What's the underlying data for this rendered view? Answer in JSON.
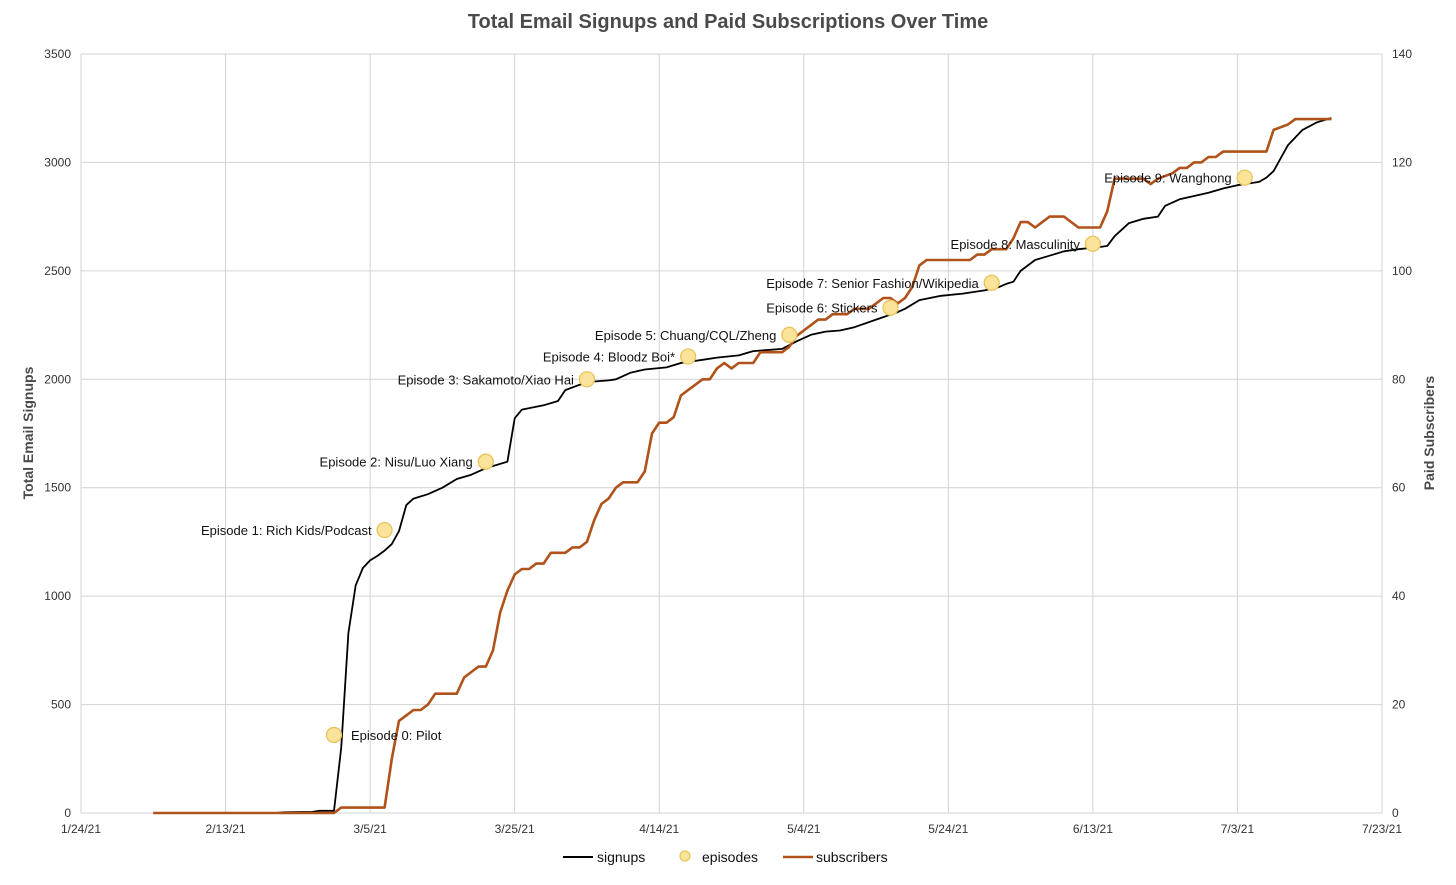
{
  "chart_data": {
    "type": "line",
    "title": "Total Email Signups and Paid Subscriptions Over Time",
    "ylabel_left": "Total Email Signups",
    "ylabel_right": "Paid Subscribers",
    "xlim": [
      "2021-01-24",
      "2021-07-23"
    ],
    "ylim_left": [
      0,
      3500
    ],
    "ylim_right": [
      0,
      140
    ],
    "x_tick_labels": [
      "1/24/21",
      "2/13/21",
      "3/5/21",
      "3/25/21",
      "4/14/21",
      "5/4/21",
      "5/24/21",
      "6/13/21",
      "7/3/21",
      "7/23/21"
    ],
    "y_left_ticks": [
      0,
      500,
      1000,
      1500,
      2000,
      2500,
      3000,
      3500
    ],
    "y_right_ticks": [
      0,
      20,
      40,
      60,
      80,
      100,
      120,
      140
    ],
    "grid": true,
    "legend_position": "bottom",
    "colors": {
      "signups": "#000000",
      "episodes": "#fbe39a",
      "episodes_edge": "#e8c45e",
      "subscribers": "#b0521a",
      "grid": "#d3d3d3"
    },
    "series": [
      {
        "name": "signups",
        "axis": "left",
        "points": [
          [
            "2021-02-03",
            0
          ],
          [
            "2021-02-20",
            0
          ],
          [
            "2021-02-21",
            3
          ],
          [
            "2021-02-25",
            5
          ],
          [
            "2021-02-26",
            10
          ],
          [
            "2021-02-28",
            10
          ],
          [
            "2021-03-01",
            300
          ],
          [
            "2021-03-02",
            830
          ],
          [
            "2021-03-03",
            1050
          ],
          [
            "2021-03-04",
            1130
          ],
          [
            "2021-03-05",
            1165
          ],
          [
            "2021-03-06",
            1185
          ],
          [
            "2021-03-07",
            1210
          ],
          [
            "2021-03-08",
            1240
          ],
          [
            "2021-03-09",
            1300
          ],
          [
            "2021-03-10",
            1420
          ],
          [
            "2021-03-11",
            1450
          ],
          [
            "2021-03-13",
            1470
          ],
          [
            "2021-03-15",
            1500
          ],
          [
            "2021-03-17",
            1540
          ],
          [
            "2021-03-19",
            1560
          ],
          [
            "2021-03-21",
            1590
          ],
          [
            "2021-03-23",
            1610
          ],
          [
            "2021-03-24",
            1620
          ],
          [
            "2021-03-25",
            1820
          ],
          [
            "2021-03-26",
            1860
          ],
          [
            "2021-03-29",
            1880
          ],
          [
            "2021-03-31",
            1900
          ],
          [
            "2021-04-01",
            1950
          ],
          [
            "2021-04-03",
            1975
          ],
          [
            "2021-04-05",
            1990
          ],
          [
            "2021-04-07",
            1995
          ],
          [
            "2021-04-08",
            2000
          ],
          [
            "2021-04-10",
            2030
          ],
          [
            "2021-04-12",
            2045
          ],
          [
            "2021-04-15",
            2055
          ],
          [
            "2021-04-17",
            2075
          ],
          [
            "2021-04-20",
            2090
          ],
          [
            "2021-04-22",
            2100
          ],
          [
            "2021-04-25",
            2110
          ],
          [
            "2021-04-27",
            2130
          ],
          [
            "2021-05-01",
            2140
          ],
          [
            "2021-05-03",
            2175
          ],
          [
            "2021-05-05",
            2205
          ],
          [
            "2021-05-07",
            2220
          ],
          [
            "2021-05-09",
            2225
          ],
          [
            "2021-05-11",
            2240
          ],
          [
            "2021-05-14",
            2275
          ],
          [
            "2021-05-17",
            2310
          ],
          [
            "2021-05-18",
            2325
          ],
          [
            "2021-05-20",
            2365
          ],
          [
            "2021-05-23",
            2385
          ],
          [
            "2021-05-26",
            2395
          ],
          [
            "2021-05-29",
            2410
          ],
          [
            "2021-05-31",
            2425
          ],
          [
            "2021-06-01",
            2440
          ],
          [
            "2021-06-02",
            2450
          ],
          [
            "2021-06-03",
            2500
          ],
          [
            "2021-06-05",
            2550
          ],
          [
            "2021-06-07",
            2570
          ],
          [
            "2021-06-09",
            2590
          ],
          [
            "2021-06-11",
            2600
          ],
          [
            "2021-06-14",
            2610
          ],
          [
            "2021-06-15",
            2615
          ],
          [
            "2021-06-16",
            2660
          ],
          [
            "2021-06-18",
            2720
          ],
          [
            "2021-06-20",
            2740
          ],
          [
            "2021-06-22",
            2750
          ],
          [
            "2021-06-23",
            2800
          ],
          [
            "2021-06-25",
            2830
          ],
          [
            "2021-06-27",
            2845
          ],
          [
            "2021-06-29",
            2860
          ],
          [
            "2021-07-01",
            2880
          ],
          [
            "2021-07-03",
            2895
          ],
          [
            "2021-07-06",
            2910
          ],
          [
            "2021-07-07",
            2930
          ],
          [
            "2021-07-08",
            2960
          ],
          [
            "2021-07-10",
            3080
          ],
          [
            "2021-07-12",
            3150
          ],
          [
            "2021-07-14",
            3185
          ],
          [
            "2021-07-16",
            3205
          ]
        ]
      },
      {
        "name": "subscribers",
        "axis": "right",
        "points": [
          [
            "2021-02-03",
            0
          ],
          [
            "2021-02-28",
            0
          ],
          [
            "2021-03-01",
            1
          ],
          [
            "2021-03-07",
            1
          ],
          [
            "2021-03-08",
            10
          ],
          [
            "2021-03-09",
            17
          ],
          [
            "2021-03-10",
            18
          ],
          [
            "2021-03-11",
            19
          ],
          [
            "2021-03-12",
            19
          ],
          [
            "2021-03-13",
            20
          ],
          [
            "2021-03-14",
            22
          ],
          [
            "2021-03-17",
            22
          ],
          [
            "2021-03-18",
            25
          ],
          [
            "2021-03-19",
            26
          ],
          [
            "2021-03-20",
            27
          ],
          [
            "2021-03-21",
            27
          ],
          [
            "2021-03-22",
            30
          ],
          [
            "2021-03-23",
            37
          ],
          [
            "2021-03-24",
            41
          ],
          [
            "2021-03-25",
            44
          ],
          [
            "2021-03-26",
            45
          ],
          [
            "2021-03-27",
            45
          ],
          [
            "2021-03-28",
            46
          ],
          [
            "2021-03-29",
            46
          ],
          [
            "2021-03-30",
            48
          ],
          [
            "2021-04-01",
            48
          ],
          [
            "2021-04-02",
            49
          ],
          [
            "2021-04-03",
            49
          ],
          [
            "2021-04-04",
            50
          ],
          [
            "2021-04-05",
            54
          ],
          [
            "2021-04-06",
            57
          ],
          [
            "2021-04-07",
            58
          ],
          [
            "2021-04-08",
            60
          ],
          [
            "2021-04-09",
            61
          ],
          [
            "2021-04-11",
            61
          ],
          [
            "2021-04-12",
            63
          ],
          [
            "2021-04-13",
            70
          ],
          [
            "2021-04-14",
            72
          ],
          [
            "2021-04-15",
            72
          ],
          [
            "2021-04-16",
            73
          ],
          [
            "2021-04-17",
            77
          ],
          [
            "2021-04-18",
            78
          ],
          [
            "2021-04-19",
            79
          ],
          [
            "2021-04-20",
            80
          ],
          [
            "2021-04-21",
            80
          ],
          [
            "2021-04-22",
            82
          ],
          [
            "2021-04-23",
            83
          ],
          [
            "2021-04-24",
            82
          ],
          [
            "2021-04-25",
            83
          ],
          [
            "2021-04-27",
            83
          ],
          [
            "2021-04-28",
            85
          ],
          [
            "2021-05-01",
            85
          ],
          [
            "2021-05-02",
            86
          ],
          [
            "2021-05-03",
            88
          ],
          [
            "2021-05-04",
            89
          ],
          [
            "2021-05-05",
            90
          ],
          [
            "2021-05-06",
            91
          ],
          [
            "2021-05-07",
            91
          ],
          [
            "2021-05-08",
            92
          ],
          [
            "2021-05-10",
            92
          ],
          [
            "2021-05-11",
            93
          ],
          [
            "2021-05-13",
            93
          ],
          [
            "2021-05-14",
            94
          ],
          [
            "2021-05-15",
            95
          ],
          [
            "2021-05-16",
            95
          ],
          [
            "2021-05-17",
            94
          ],
          [
            "2021-05-18",
            95
          ],
          [
            "2021-05-19",
            97
          ],
          [
            "2021-05-20",
            101
          ],
          [
            "2021-05-21",
            102
          ],
          [
            "2021-05-27",
            102
          ],
          [
            "2021-05-28",
            103
          ],
          [
            "2021-05-29",
            103
          ],
          [
            "2021-05-30",
            104
          ],
          [
            "2021-06-01",
            104
          ],
          [
            "2021-06-02",
            106
          ],
          [
            "2021-06-03",
            109
          ],
          [
            "2021-06-04",
            109
          ],
          [
            "2021-06-05",
            108
          ],
          [
            "2021-06-06",
            109
          ],
          [
            "2021-06-07",
            110
          ],
          [
            "2021-06-09",
            110
          ],
          [
            "2021-06-11",
            108
          ],
          [
            "2021-06-14",
            108
          ],
          [
            "2021-06-15",
            111
          ],
          [
            "2021-06-16",
            117
          ],
          [
            "2021-06-20",
            117
          ],
          [
            "2021-06-21",
            116
          ],
          [
            "2021-06-22",
            117
          ],
          [
            "2021-06-24",
            118
          ],
          [
            "2021-06-25",
            119
          ],
          [
            "2021-06-26",
            119
          ],
          [
            "2021-06-27",
            120
          ],
          [
            "2021-06-28",
            120
          ],
          [
            "2021-06-29",
            121
          ],
          [
            "2021-06-30",
            121
          ],
          [
            "2021-07-01",
            122
          ],
          [
            "2021-07-07",
            122
          ],
          [
            "2021-07-08",
            126
          ],
          [
            "2021-07-10",
            127
          ],
          [
            "2021-07-11",
            128
          ],
          [
            "2021-07-16",
            128
          ]
        ]
      }
    ],
    "episodes": {
      "name": "episodes",
      "axis": "left",
      "points": [
        {
          "date": "2021-02-28",
          "value": 360,
          "label": "Episode 0: Pilot"
        },
        {
          "date": "2021-03-07",
          "value": 1305,
          "label": "Episode 1: Rich Kids/Podcast"
        },
        {
          "date": "2021-03-21",
          "value": 1620,
          "label": "Episode 2: Nisu/Luo Xiang"
        },
        {
          "date": "2021-04-04",
          "value": 2000,
          "label": "Episode 3: Sakamoto/Xiao Hai"
        },
        {
          "date": "2021-04-18",
          "value": 2105,
          "label": "Episode 4: Bloodz Boi*"
        },
        {
          "date": "2021-05-02",
          "value": 2205,
          "label": "Episode 5: Chuang/CQL/Zheng"
        },
        {
          "date": "2021-05-16",
          "value": 2330,
          "label": "Episode 6: Stickers"
        },
        {
          "date": "2021-05-30",
          "value": 2445,
          "label": "Episode 7: Senior Fashion/Wikipedia"
        },
        {
          "date": "2021-06-13",
          "value": 2625,
          "label": "Episode 8: Masculinity"
        },
        {
          "date": "2021-07-04",
          "value": 2930,
          "label": "Episode 9: Wanghong"
        }
      ]
    }
  }
}
